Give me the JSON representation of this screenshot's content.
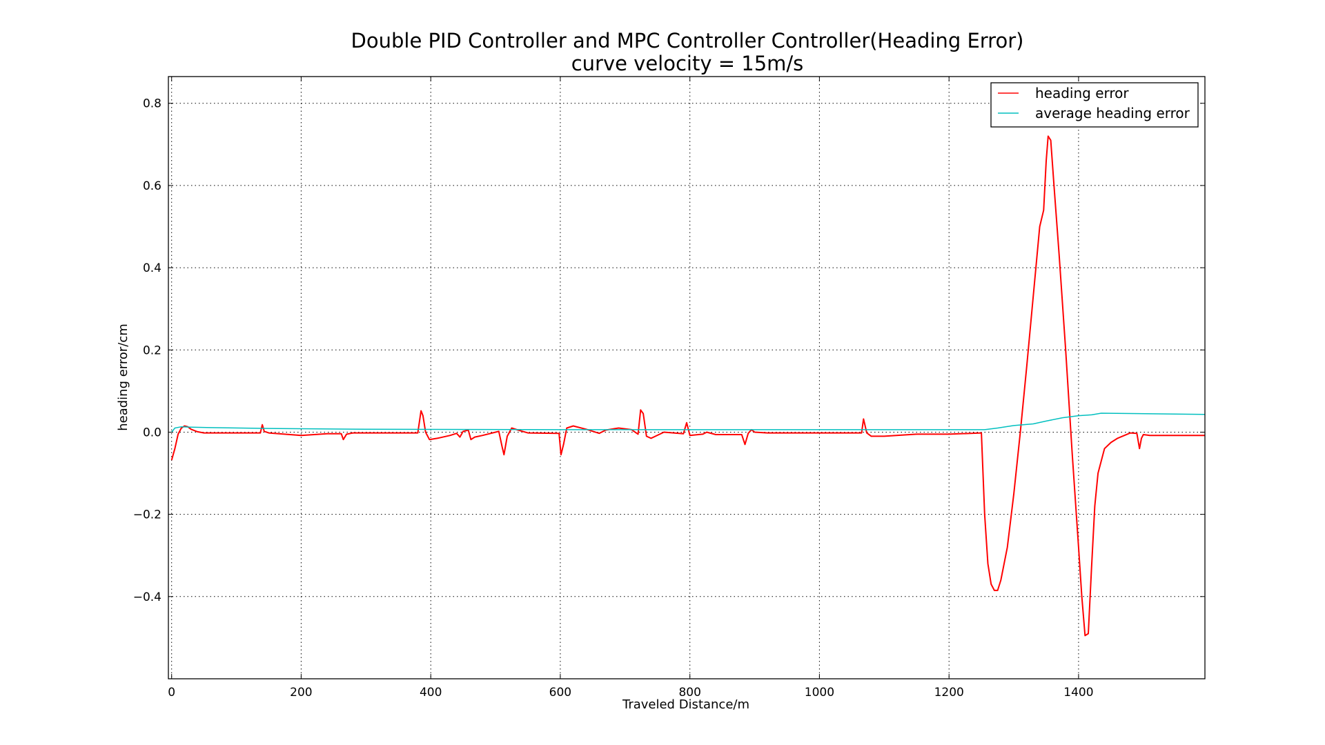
{
  "chart_data": {
    "type": "line",
    "title": "Double PID Controller and MPC Controller Controller(Heading Error)",
    "subtitle": "curve velocity = 15m/s",
    "xlabel": "Traveled Distance/m",
    "ylabel": "heading error/cm",
    "xlim": [
      -5,
      1595
    ],
    "ylim": [
      -0.6,
      0.865
    ],
    "xticks": [
      0,
      200,
      400,
      600,
      800,
      1000,
      1200,
      1400
    ],
    "yticks": [
      -0.4,
      -0.2,
      0.0,
      0.2,
      0.4,
      0.6,
      0.8
    ],
    "ytick_labels": [
      "−0.4",
      "−0.2",
      "0.0",
      "0.2",
      "0.4",
      "0.6",
      "0.8"
    ],
    "grid": true,
    "legend_position": "top-right",
    "series": [
      {
        "name": "heading error",
        "color": "#ff0000",
        "x": [
          0,
          5,
          10,
          15,
          20,
          25,
          30,
          40,
          50,
          70,
          100,
          137,
          140,
          143,
          150,
          200,
          240,
          262,
          265,
          270,
          280,
          380,
          385,
          388,
          392,
          398,
          410,
          430,
          440,
          445,
          450,
          458,
          462,
          468,
          480,
          500,
          505,
          510,
          513,
          518,
          525,
          535,
          550,
          598,
          601,
          605,
          610,
          620,
          640,
          660,
          670,
          690,
          710,
          720,
          724,
          728,
          733,
          740,
          760,
          790,
          795,
          800,
          820,
          826,
          840,
          880,
          885,
          890,
          895,
          900,
          920,
          1000,
          1065,
          1068,
          1073,
          1080,
          1100,
          1150,
          1200,
          1250,
          1255,
          1260,
          1265,
          1270,
          1275,
          1280,
          1290,
          1300,
          1310,
          1320,
          1330,
          1340,
          1346,
          1350,
          1353,
          1357,
          1362,
          1370,
          1380,
          1390,
          1400,
          1405,
          1410,
          1415,
          1420,
          1425,
          1430,
          1440,
          1450,
          1460,
          1480,
          1490,
          1494,
          1497,
          1500,
          1510,
          1520,
          1550,
          1595
        ],
        "y": [
          -0.068,
          -0.04,
          -0.005,
          0.01,
          0.015,
          0.013,
          0.007,
          0.001,
          -0.002,
          -0.002,
          -0.002,
          -0.002,
          0.018,
          0.002,
          -0.002,
          -0.008,
          -0.004,
          -0.004,
          -0.018,
          -0.005,
          -0.002,
          -0.002,
          0.052,
          0.04,
          0.0,
          -0.018,
          -0.015,
          -0.008,
          -0.003,
          -0.012,
          0.002,
          0.005,
          -0.018,
          -0.012,
          -0.008,
          0.0,
          0.002,
          -0.035,
          -0.055,
          -0.01,
          0.01,
          0.005,
          -0.002,
          -0.003,
          -0.055,
          -0.03,
          0.01,
          0.015,
          0.007,
          -0.003,
          0.005,
          0.01,
          0.006,
          -0.005,
          0.054,
          0.045,
          -0.01,
          -0.015,
          0.0,
          -0.004,
          0.023,
          -0.008,
          -0.005,
          0.0,
          -0.006,
          -0.006,
          -0.03,
          -0.003,
          0.006,
          0.0,
          -0.002,
          -0.002,
          -0.002,
          0.032,
          -0.002,
          -0.01,
          -0.01,
          -0.005,
          -0.005,
          -0.002,
          -0.2,
          -0.32,
          -0.37,
          -0.385,
          -0.385,
          -0.36,
          -0.28,
          -0.15,
          0.0,
          0.16,
          0.33,
          0.5,
          0.54,
          0.66,
          0.72,
          0.71,
          0.6,
          0.43,
          0.2,
          -0.05,
          -0.28,
          -0.4,
          -0.495,
          -0.49,
          -0.33,
          -0.18,
          -0.1,
          -0.04,
          -0.025,
          -0.015,
          -0.002,
          -0.003,
          -0.04,
          -0.015,
          -0.006,
          -0.008,
          -0.008,
          -0.008,
          -0.008
        ]
      },
      {
        "name": "average heading error",
        "color": "#00bfbf",
        "x": [
          0,
          5,
          15,
          30,
          60,
          150,
          300,
          600,
          900,
          1200,
          1255,
          1275,
          1300,
          1330,
          1350,
          1375,
          1400,
          1420,
          1435,
          1595
        ],
        "y": [
          0.0,
          0.01,
          0.013,
          0.012,
          0.011,
          0.009,
          0.007,
          0.006,
          0.006,
          0.006,
          0.006,
          0.01,
          0.016,
          0.02,
          0.027,
          0.035,
          0.04,
          0.042,
          0.046,
          0.043
        ]
      }
    ]
  }
}
